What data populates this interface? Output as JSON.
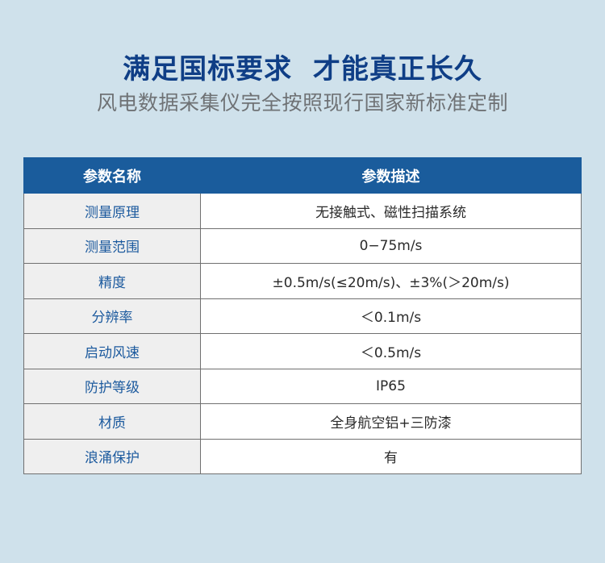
{
  "header": {
    "title": "满足国标要求  才能真正长久",
    "subtitle": "风电数据采集仪完全按照现行国家新标准定制"
  },
  "table": {
    "columns": [
      "参数名称",
      "参数描述"
    ],
    "rows": [
      {
        "name": "测量原理",
        "desc": "无接触式、磁性扫描系统"
      },
      {
        "name": "测量范围",
        "desc": "0−75m/s"
      },
      {
        "name": "精度",
        "desc": "±0.5m/s(≤20m/s)、±3%(＞20m/s)"
      },
      {
        "name": "分辨率",
        "desc": "＜0.1m/s"
      },
      {
        "name": "启动风速",
        "desc": "＜0.5m/s"
      },
      {
        "name": "防护等级",
        "desc": "IP65"
      },
      {
        "name": "材质",
        "desc": "全身航空铝+三防漆"
      },
      {
        "name": "浪涌保护",
        "desc": "有"
      }
    ]
  },
  "colors": {
    "background": "#cfe1eb",
    "title": "#0f3e86",
    "header_bg": "#1a5c9c",
    "key_text": "#1c5a9e"
  }
}
